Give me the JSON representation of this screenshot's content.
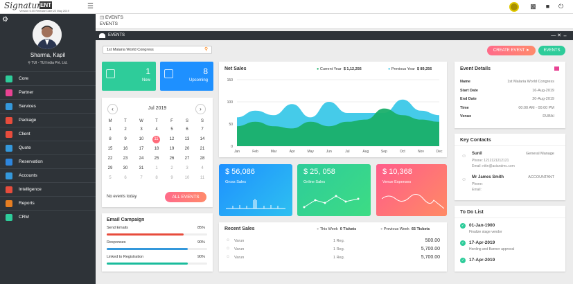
{
  "topbar": {
    "logo": "Signature",
    "logo_badge": "ENT",
    "version": "Version 6.00   Release Date:22 May 2019"
  },
  "sidebar": {
    "profile_name": "Sharma, Kapil",
    "profile_org": "TUI - TUI India Pvt. Ltd.",
    "items": [
      {
        "label": "Core",
        "color": "#2ecc9a"
      },
      {
        "label": "Partner",
        "color": "#e84393"
      },
      {
        "label": "Services",
        "color": "#3498db"
      },
      {
        "label": "Package",
        "color": "#e74c3c"
      },
      {
        "label": "Client",
        "color": "#e74c3c"
      },
      {
        "label": "Quote",
        "color": "#3498db"
      },
      {
        "label": "Reservation",
        "color": "#2e86de"
      },
      {
        "label": "Accounts",
        "color": "#3498db"
      },
      {
        "label": "Intelligence",
        "color": "#e74c3c"
      },
      {
        "label": "Reports",
        "color": "#e67e22"
      },
      {
        "label": "CRM",
        "color": "#2ecc9a"
      }
    ]
  },
  "breadcrumb": {
    "level1": "EVENTS",
    "level2": "EVENTS"
  },
  "events_header": {
    "title": "EVENTS"
  },
  "search": {
    "value": "1st Malaria World Congress"
  },
  "buttons": {
    "create_event": "CREATE EVENT",
    "events": "EVENTS",
    "all_events": "ALL EVENTS"
  },
  "stats": {
    "new_count": "1",
    "new_label": "New",
    "upcoming_count": "8",
    "upcoming_label": "Upcoming"
  },
  "calendar": {
    "month": "Jul 2019",
    "weekdays": [
      "M",
      "T",
      "W",
      "T",
      "F",
      "S",
      "S"
    ],
    "weeks": [
      [
        "",
        "1",
        "2",
        "3",
        "4",
        "5",
        "6",
        "7"
      ],
      [
        "8",
        "9",
        "10",
        "11",
        "12",
        "13",
        "14"
      ],
      [
        "15",
        "16",
        "17",
        "18",
        "19",
        "20",
        "21"
      ],
      [
        "22",
        "23",
        "24",
        "25",
        "26",
        "27",
        "28"
      ],
      [
        "29",
        "30",
        "31",
        "1",
        "2",
        "3",
        "4"
      ],
      [
        "5",
        "6",
        "7",
        "8",
        "9",
        "10",
        "11"
      ]
    ],
    "today": "11",
    "no_events": "No events today"
  },
  "net_sales": {
    "title": "Net Sales",
    "current_label": "Current Year",
    "current_value": "$ 1,12,256",
    "previous_label": "Previous Year",
    "previous_value": "$ 89,256"
  },
  "chart_data": {
    "type": "area",
    "title": "Net Sales",
    "categories": [
      "Jan",
      "Feb",
      "Mar",
      "Apr",
      "May",
      "Jun",
      "Jul",
      "Aug",
      "Sep",
      "Oct",
      "Nov",
      "Dec"
    ],
    "yticks": [
      "150",
      "100",
      "50",
      "0"
    ],
    "ylim": [
      0,
      150
    ],
    "series": [
      {
        "name": "Current Year",
        "color": "#1aaf6a",
        "values": [
          45,
          55,
          45,
          40,
          55,
          45,
          55,
          60,
          85,
          70,
          60,
          55
        ]
      },
      {
        "name": "Previous Year",
        "color": "#3bc8e8",
        "values": [
          65,
          80,
          70,
          95,
          65,
          100,
          75,
          75,
          75,
          105,
          80,
          70
        ]
      }
    ]
  },
  "tiles": {
    "gross_value": "$ 56,086",
    "gross_label": "Gross Sales",
    "online_value": "$ 25, 058",
    "online_label": "Online Sales",
    "venue_value": "$ 10,368",
    "venue_label": "Venue Expenses"
  },
  "email_campaign": {
    "title": "Email Campaign",
    "rows": [
      {
        "label": "Send Emails",
        "pct": "85%",
        "value": 0.85,
        "color": "#e74c3c"
      },
      {
        "label": "Responses",
        "pct": "90%",
        "value": 0.9,
        "color": "#3498db"
      },
      {
        "label": "Linked to Registration",
        "pct": "90%",
        "value": 0.9,
        "color": "#1abc9c"
      }
    ]
  },
  "recent_sales": {
    "title": "Recent Sales",
    "this_week_label": "This Week",
    "this_week_value": "0 Tickets",
    "prev_week_label": "Previous Week",
    "prev_week_value": "65 Tickets",
    "rows": [
      {
        "name": "Varun",
        "reg": "1 Reg.",
        "amount": "500.00"
      },
      {
        "name": "Varun",
        "reg": "1 Reg.",
        "amount": "5,700.00"
      },
      {
        "name": "Varun",
        "reg": "1 Reg.",
        "amount": "5,700.00"
      }
    ]
  },
  "event_details": {
    "title": "Event Details",
    "rows": [
      {
        "k": "Name",
        "v": "1st Malaria World Congress"
      },
      {
        "k": "Start Date",
        "v": "16-Aug-2019"
      },
      {
        "k": "End Date",
        "v": "20-Aug-2019"
      },
      {
        "k": "Time",
        "v": "00:00 AM - 00:00 PM"
      },
      {
        "k": "Venue",
        "v": "DUBAI"
      }
    ]
  },
  "key_contacts": {
    "title": "Key Contacts",
    "contacts": [
      {
        "name": "Sunil",
        "role": "General Manage",
        "phone": "Phone: 1212121212121",
        "email": "Email: nitin@asiandmc.com"
      },
      {
        "name": "Mr James Smith",
        "role": "ACCOUNTANT",
        "phone": "Phone:",
        "email": "Email:"
      }
    ]
  },
  "todo": {
    "title": "To Do List",
    "items": [
      {
        "date": "01-Jan-1900",
        "text": "Finalize stage vendor"
      },
      {
        "date": "17-Apr-2019",
        "text": "Hording and Banner approval"
      },
      {
        "date": "17-Apr-2019",
        "text": ""
      }
    ]
  }
}
